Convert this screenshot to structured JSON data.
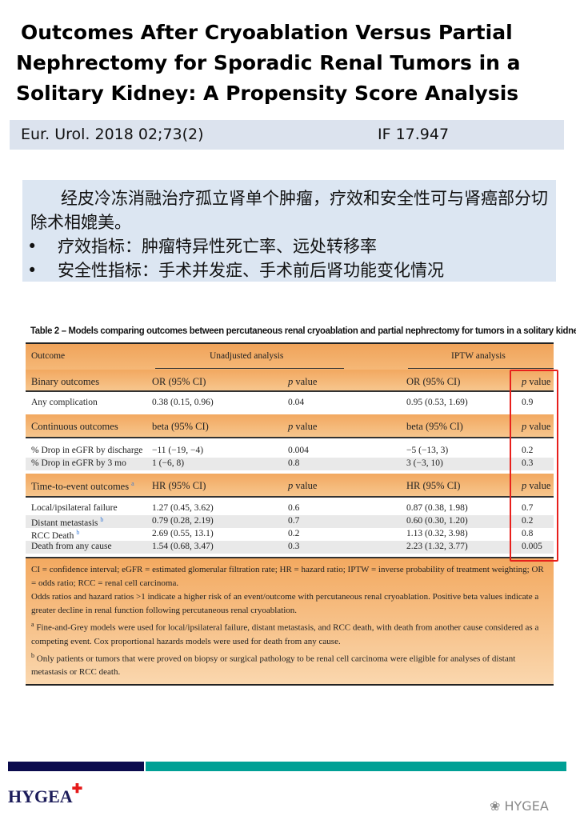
{
  "title": {
    "lines": [
      "Outcomes After Cryoablation Versus Partial",
      "Nephrectomy for Sporadic Renal Tumors in a",
      "Solitary Kidney: A Propensity Score Analysis"
    ]
  },
  "info": {
    "journal": "Eur. Urol. 2018 02;73(2)",
    "impact_factor": "IF 17.947"
  },
  "summary": {
    "intro": "经皮冷冻消融治疗孤立肾单个肿瘤，疗效和安全性可与肾癌部分切除术相媲美。",
    "bullets": [
      "疗效指标：肿瘤特异性死亡率、远处转移率",
      "安全性指标：手术并发症、手术前后肾功能变化情况"
    ],
    "bullet_glyph": "•"
  },
  "table": {
    "caption": "Table 2 – Models comparing outcomes between percutaneous renal cryoablation and partial nephrectomy for tumors in a solitary kidney",
    "header": {
      "outcome": "Outcome",
      "unadjusted": "Unadjusted analysis",
      "iptw": "IPTW analysis"
    },
    "p_italic": "p",
    "p_rest": " value",
    "sections": [
      {
        "label": "Binary outcomes",
        "est": "OR (95% CI)",
        "footmark": "",
        "rows": [
          [
            "Any complication",
            "0.38 (0.15, 0.96)",
            "0.04",
            "0.95 (0.53, 1.69)",
            "0.9",
            ""
          ]
        ]
      },
      {
        "label": "Continuous outcomes",
        "est": "beta (95% CI)",
        "footmark": "",
        "rows": [
          [
            "% Drop in eGFR by discharge",
            "−11 (−19, −4)",
            "0.004",
            "−5 (−13, 3)",
            "0.2",
            ""
          ],
          [
            "% Drop in eGFR by 3 mo",
            "1 (−6, 8)",
            "0.8",
            "3 (−3, 10)",
            "0.3",
            ""
          ]
        ]
      },
      {
        "label": "Time-to-event outcomes",
        "est": "HR (95% CI)",
        "footmark": "a",
        "rows": [
          [
            "Local/ipsilateral failure",
            "1.27 (0.45, 3.62)",
            "0.6",
            "0.87 (0.38, 1.98)",
            "0.7",
            ""
          ],
          [
            "Distant metastasis",
            "0.79 (0.28, 2.19)",
            "0.7",
            "0.60 (0.30, 1.20)",
            "0.2",
            "b"
          ],
          [
            "RCC Death",
            "2.69 (0.55, 13.1)",
            "0.2",
            "1.13 (0.32, 3.98)",
            "0.8",
            "b"
          ],
          [
            "Death from any cause",
            "1.54 (0.68, 3.47)",
            "0.3",
            "2.23 (1.32, 3.77)",
            "0.005",
            ""
          ]
        ]
      }
    ],
    "footnotes": {
      "abbr": "CI = confidence interval; eGFR = estimated glomerular filtration rate; HR = hazard ratio; IPTW = inverse probability of treatment weighting; OR = odds ratio; RCC = renal cell carcinoma.",
      "interp": "Odds ratios and hazard ratios >1 indicate a higher risk of an event/outcome with percutaneous renal cryoablation. Positive beta values indicate a greater decline in renal function following percutaneous renal cryoablation.",
      "a_mark": "a",
      "a": "Fine-and-Grey models were used for local/ipsilateral failure, distant metastasis, and RCC death, with death from another cause considered as a competing event. Cox proportional hazards models were used for death from any cause.",
      "b_mark": "b",
      "b": "Only patients or tumors that were proved on biopsy or surgical pathology to be renal cell carcinoma were eligible for analyses of distant metastasis or RCC death."
    },
    "highlight_color": "#e8201c"
  },
  "footer": {
    "logo": "HYGEA",
    "logo_cross": "✚",
    "watermark": "HYGEA",
    "watermark_icon": "wechat-icon",
    "colors": {
      "navy": "#0b0b4d",
      "teal": "#00a095"
    }
  }
}
